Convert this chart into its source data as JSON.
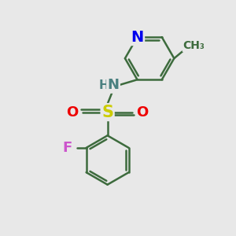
{
  "bg_color": "#e8e8e8",
  "bond_color": "#3d6b3d",
  "bond_width": 1.8,
  "atom_colors": {
    "N": "#0000ee",
    "N_H": "#4a8080",
    "S": "#cccc00",
    "O": "#ee0000",
    "F": "#cc55cc",
    "C": "#3d6b3d",
    "H": "#4a8080"
  },
  "figsize": [
    3.0,
    3.0
  ],
  "dpi": 100
}
